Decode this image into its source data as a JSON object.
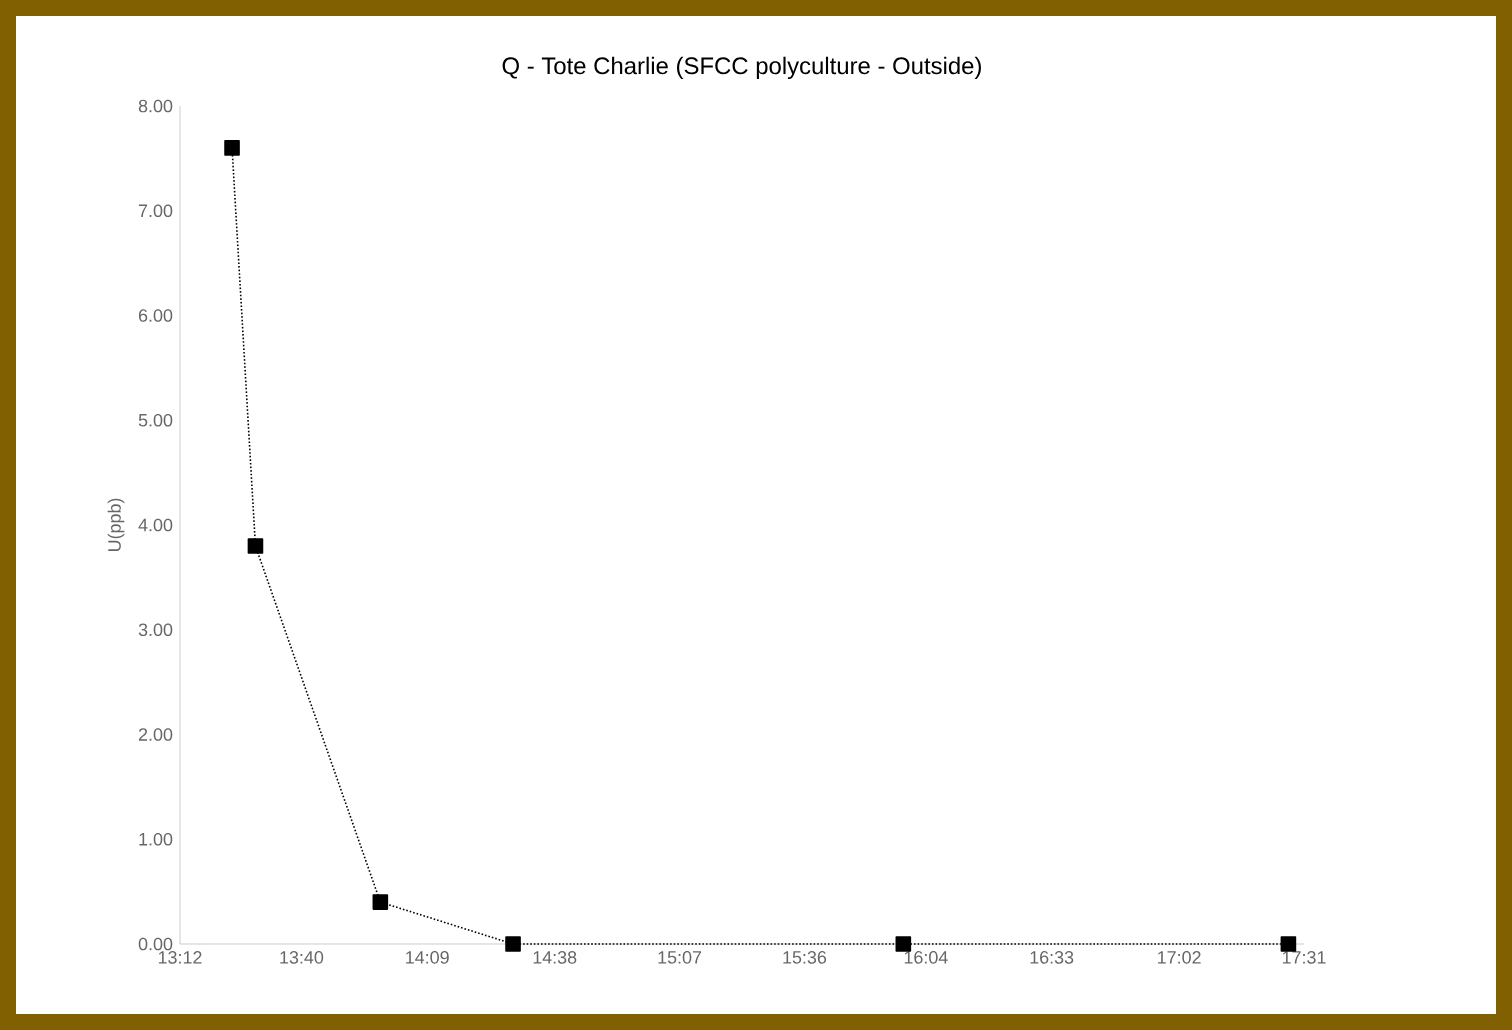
{
  "chart_data": {
    "type": "line",
    "title": "Q - Tote Charlie (SFCC polyculture - Outside)",
    "ylabel": "U(ppb)",
    "x": [
      13.4,
      13.49,
      13.97,
      14.48,
      15.98,
      17.46
    ],
    "series": [
      {
        "color": "#000000",
        "values": [
          7.6,
          3.8,
          0.4,
          0,
          0,
          0
        ]
      }
    ],
    "xlim": [
      13.2,
      17.52
    ],
    "xticks": [
      {
        "value": 13.2,
        "label": "13:12"
      },
      {
        "value": 13.6667,
        "label": "13:40"
      },
      {
        "value": 14.15,
        "label": "14:09"
      },
      {
        "value": 14.64,
        "label": "14:38"
      },
      {
        "value": 15.12,
        "label": "15:07"
      },
      {
        "value": 15.6,
        "label": "15:36"
      },
      {
        "value": 16.0667,
        "label": "16:04"
      },
      {
        "value": 16.55,
        "label": "16:33"
      },
      {
        "value": 17.04,
        "label": "17:02"
      },
      {
        "value": 17.52,
        "label": "17:31"
      }
    ],
    "ylim": [
      0,
      8
    ],
    "yticks": [
      {
        "value": 0,
        "label": "0.00"
      },
      {
        "value": 1,
        "label": "1.00"
      },
      {
        "value": 2,
        "label": "2.00"
      },
      {
        "value": 3,
        "label": "3.00"
      },
      {
        "value": 4,
        "label": "4.00"
      },
      {
        "value": 5,
        "label": "5.00"
      },
      {
        "value": 6,
        "label": "6.00"
      },
      {
        "value": 7,
        "label": "7.00"
      },
      {
        "value": 8,
        "label": "8.00"
      }
    ],
    "grid": false,
    "marker": "square",
    "line_style": "dotted"
  }
}
